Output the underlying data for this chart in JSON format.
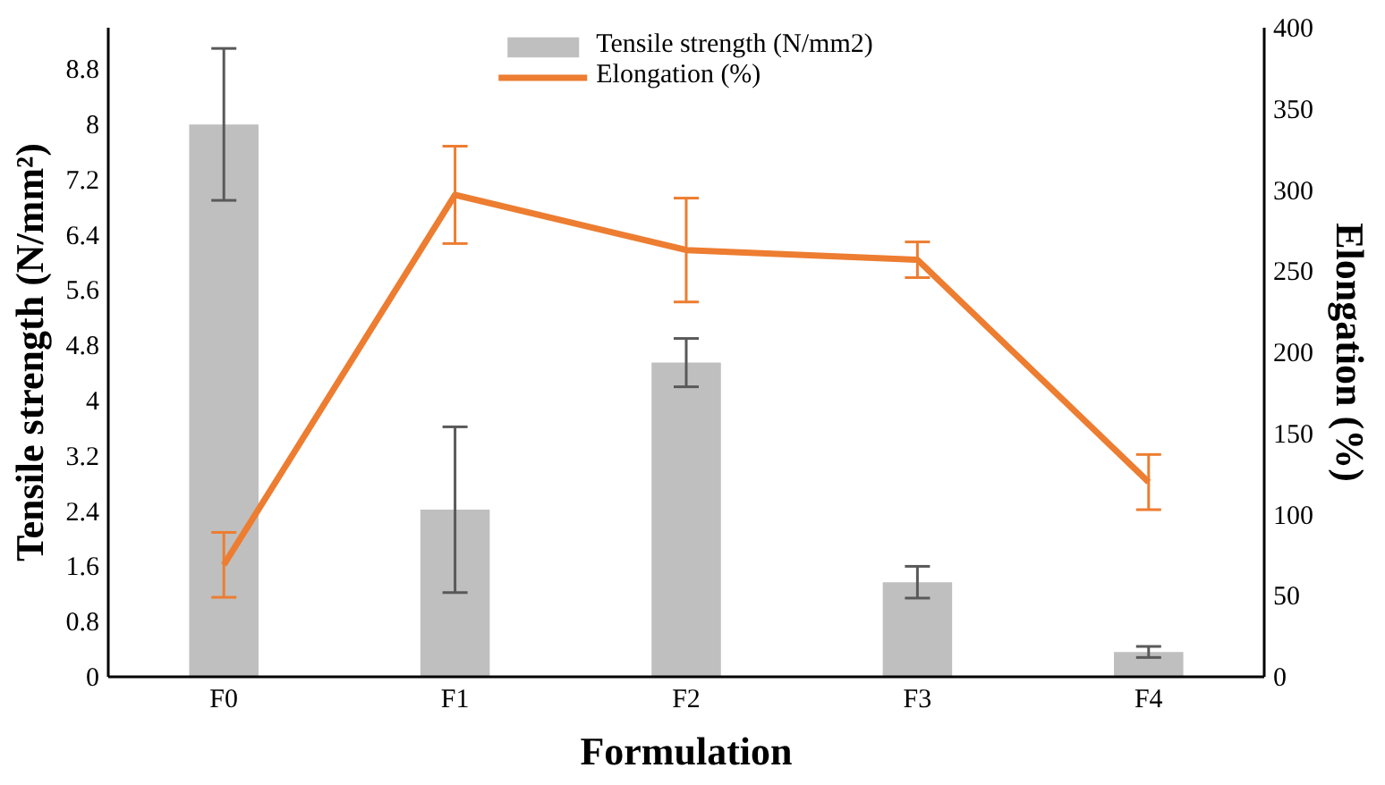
{
  "chart_data": {
    "type": "bar",
    "xlabel": "Formulation",
    "ylabel": "Tensile strength (N/mm²)",
    "y2label": "Elongation (%)",
    "categories": [
      "F0",
      "F1",
      "F2",
      "F3",
      "F4"
    ],
    "series": [
      {
        "name": "Tensile strength (N/mm2)",
        "color": "#bfbfbf",
        "values": [
          8.0,
          2.42,
          4.55,
          1.37,
          0.36
        ],
        "errors": [
          1.1,
          1.2,
          0.35,
          0.23,
          0.08
        ]
      },
      {
        "name": "Elongation (%)",
        "type": "line",
        "axis": "y2",
        "color": "#ed7d31",
        "values": [
          69,
          297,
          263,
          257,
          120
        ],
        "errors": [
          20,
          30,
          32,
          11,
          17
        ]
      }
    ],
    "ylim": [
      0,
      9.4
    ],
    "yticks": [
      0,
      0.8,
      1.6,
      2.4,
      3.2,
      4,
      4.8,
      5.6,
      6.4,
      7.2,
      8,
      8.8
    ],
    "y2lim": [
      0,
      400
    ],
    "y2ticks": [
      0,
      50,
      100,
      150,
      200,
      250,
      300,
      350,
      400
    ],
    "grid": false,
    "legend": "top",
    "marker": "none",
    "line_style": "solid"
  }
}
